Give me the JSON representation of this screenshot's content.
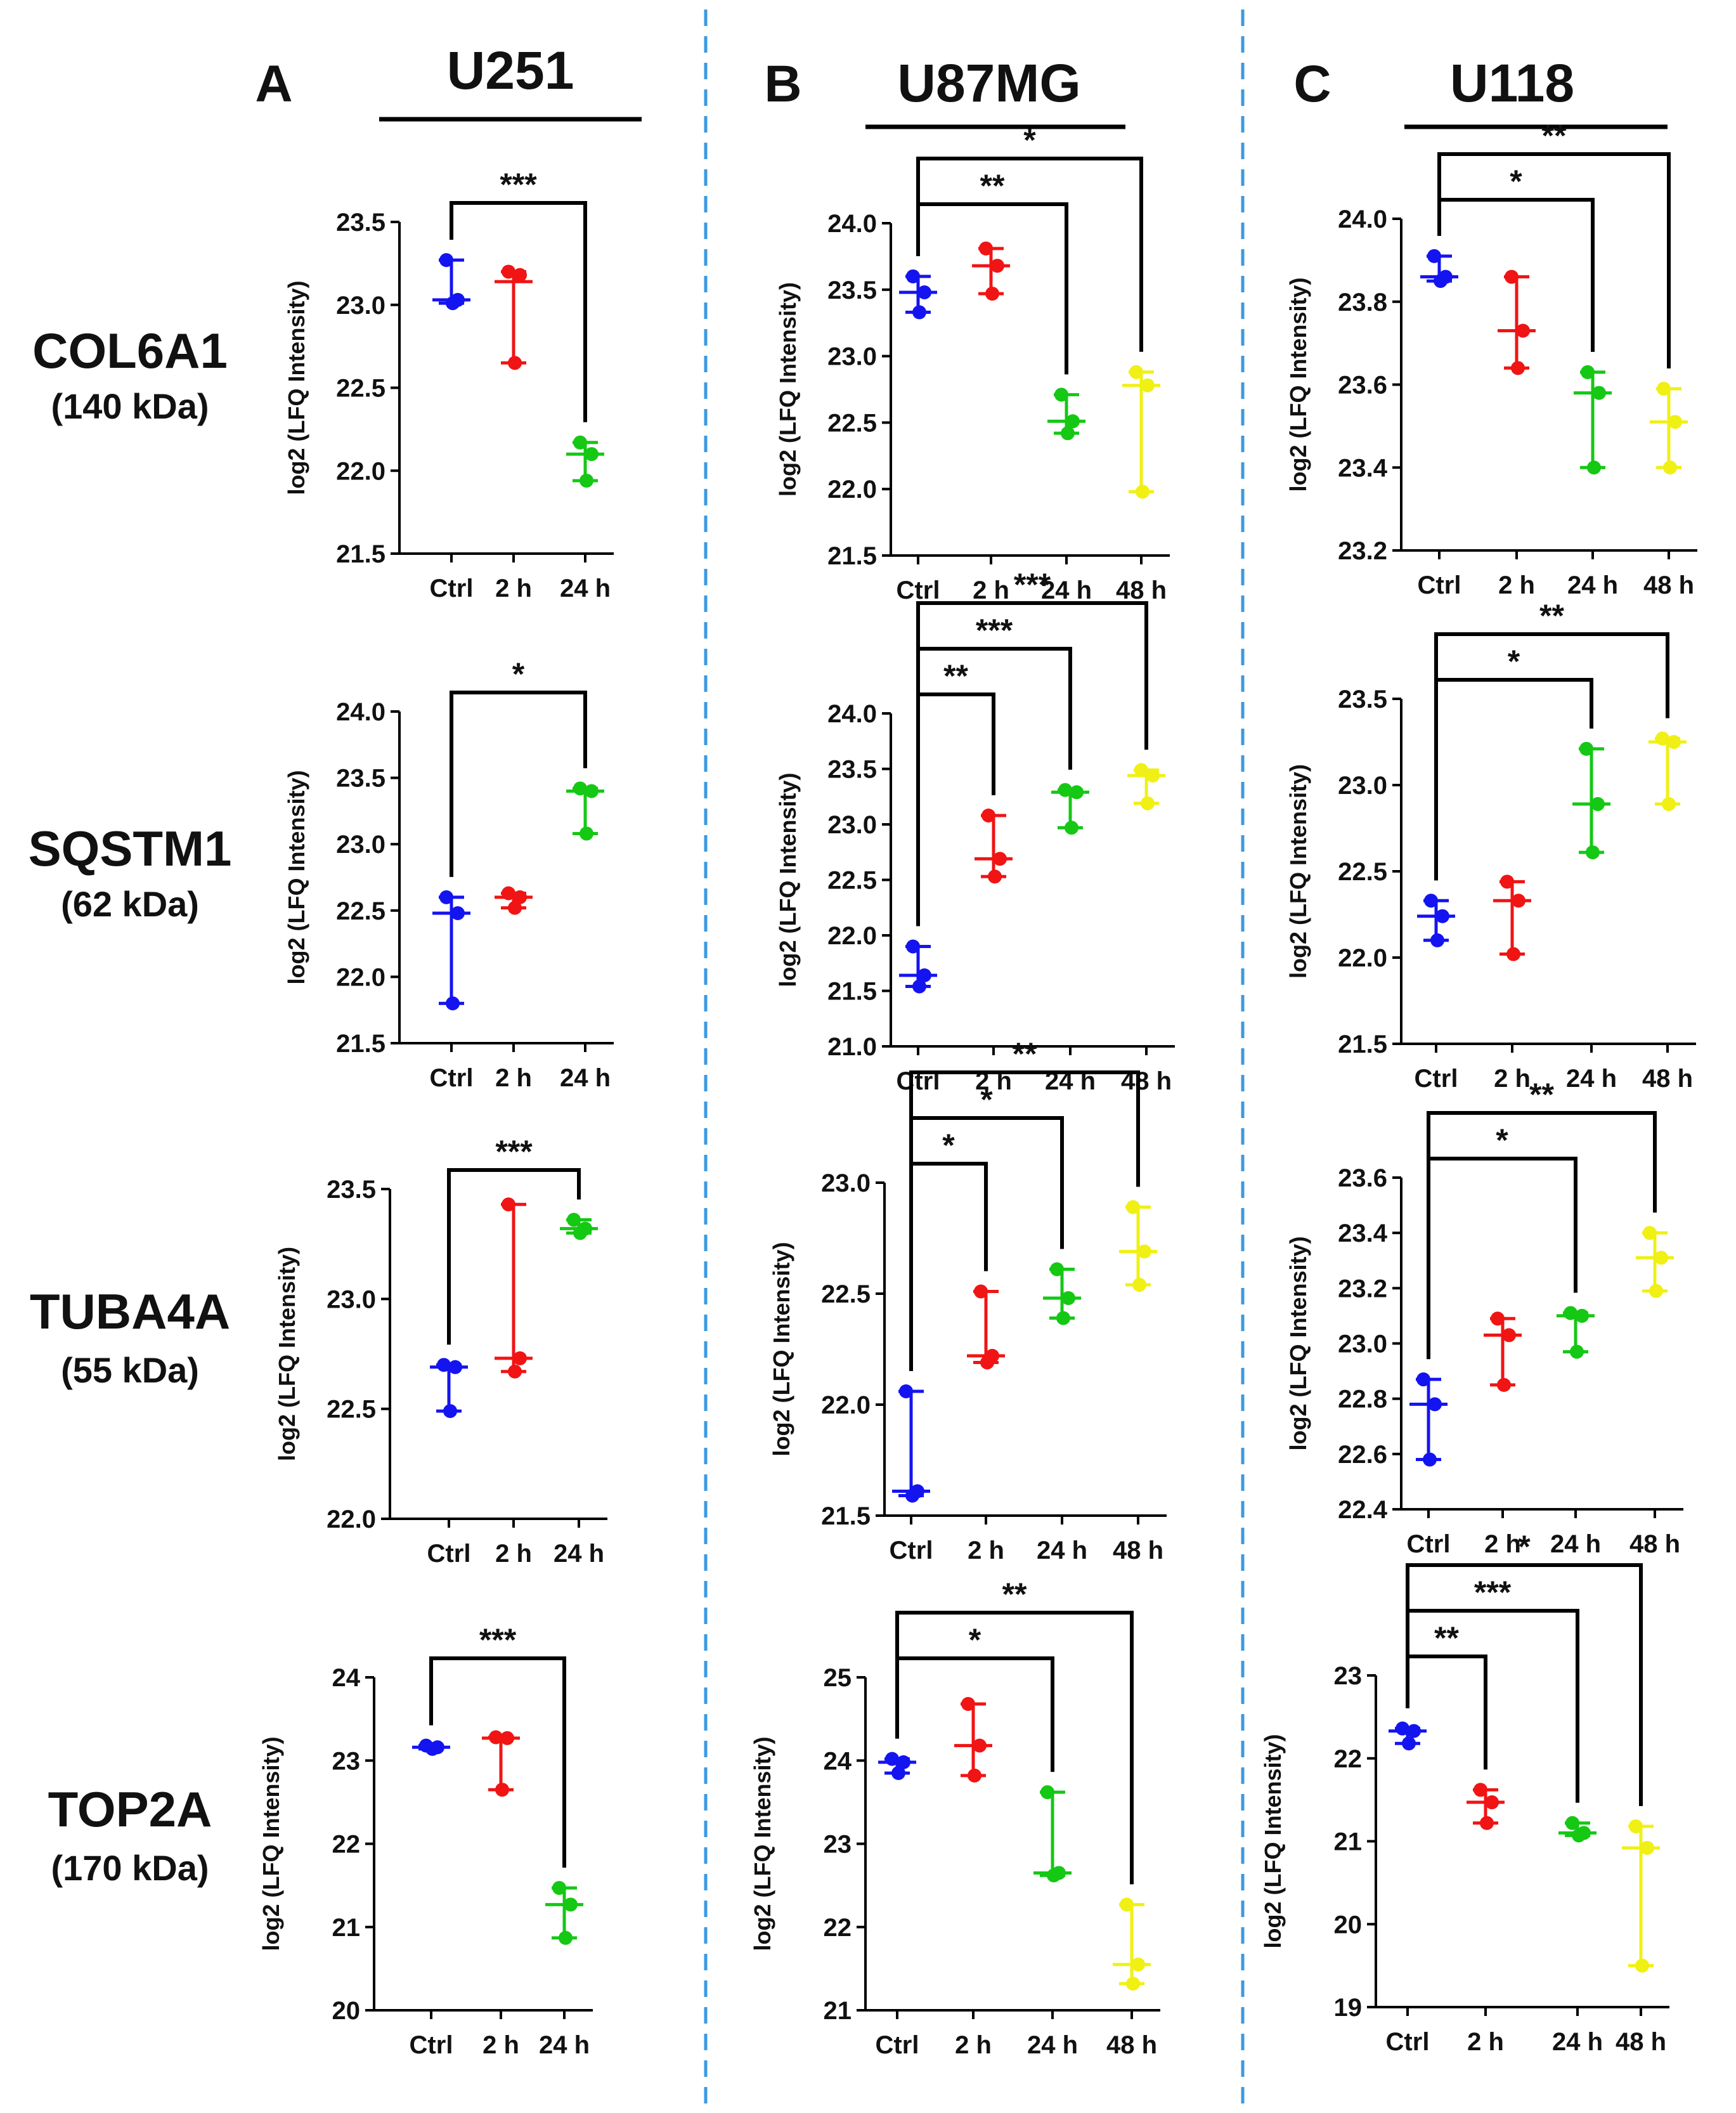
{
  "figure": {
    "columns": [
      {
        "panel": "A",
        "cell_line": "U251"
      },
      {
        "panel": "B",
        "cell_line": "U87MG"
      },
      {
        "panel": "C",
        "cell_line": "U118"
      }
    ],
    "rows": [
      {
        "protein": "COL6A1",
        "size": "(140 kDa)"
      },
      {
        "protein": "SQSTM1",
        "size": "(62 kDa)"
      },
      {
        "protein": "TUBA4A",
        "size": "(55 kDa)"
      },
      {
        "protein": "TOP2A",
        "size": "(170 kDa)"
      }
    ],
    "y_axis_label": "log2 (LFQ Intensity)",
    "colors": {
      "Ctrl": "#1414f0",
      "2 h": "#f01414",
      "24 h": "#14c814",
      "48 h": "#f0f014",
      "axis": "#000000",
      "divider": "#3b9ae1"
    }
  },
  "chart_data": [
    {
      "id": "A1",
      "type": "scatter",
      "panel": "A",
      "cell_line": "U251",
      "protein": "COL6A1",
      "ylabel": "log2 (LFQ Intensity)",
      "categories": [
        "Ctrl",
        "2 h",
        "24 h"
      ],
      "ylim": [
        21.5,
        23.5
      ],
      "yticks": [
        "21.5",
        "22.0",
        "22.5",
        "23.0",
        "23.5"
      ],
      "groups": [
        {
          "category": "Ctrl",
          "median": 23.03,
          "points": [
            23.27,
            23.03,
            23.01
          ]
        },
        {
          "category": "2 h",
          "median": 23.14,
          "points": [
            23.2,
            23.18,
            22.65
          ]
        },
        {
          "category": "24 h",
          "median": 22.1,
          "points": [
            22.17,
            22.1,
            21.94
          ]
        }
      ],
      "significance": [
        {
          "from": "Ctrl",
          "to": "24 h",
          "label": "***"
        }
      ]
    },
    {
      "id": "B1",
      "type": "scatter",
      "panel": "B",
      "cell_line": "U87MG",
      "protein": "COL6A1",
      "ylabel": "log2 (LFQ Intensity)",
      "categories": [
        "Ctrl",
        "2 h",
        "24 h",
        "48 h"
      ],
      "ylim": [
        21.5,
        24.0
      ],
      "yticks": [
        "21.5",
        "22.0",
        "22.5",
        "23.0",
        "23.5",
        "24.0"
      ],
      "groups": [
        {
          "category": "Ctrl",
          "median": 23.48,
          "points": [
            23.6,
            23.48,
            23.33
          ]
        },
        {
          "category": "2 h",
          "median": 23.68,
          "points": [
            23.81,
            23.68,
            23.47
          ]
        },
        {
          "category": "24 h",
          "median": 22.51,
          "points": [
            22.71,
            22.51,
            22.42
          ]
        },
        {
          "category": "48 h",
          "median": 22.78,
          "points": [
            22.88,
            22.78,
            21.98
          ]
        }
      ],
      "significance": [
        {
          "from": "Ctrl",
          "to": "24 h",
          "label": "**"
        },
        {
          "from": "Ctrl",
          "to": "48 h",
          "label": "*"
        }
      ]
    },
    {
      "id": "C1",
      "type": "scatter",
      "panel": "C",
      "cell_line": "U118",
      "protein": "COL6A1",
      "ylabel": "log2 (LFQ Intensity)",
      "categories": [
        "Ctrl",
        "2 h",
        "24 h",
        "48 h"
      ],
      "ylim": [
        23.2,
        24.0
      ],
      "yticks": [
        "23.2",
        "23.4",
        "23.6",
        "23.8",
        "24.0"
      ],
      "groups": [
        {
          "category": "Ctrl",
          "median": 23.86,
          "points": [
            23.91,
            23.86,
            23.85
          ]
        },
        {
          "category": "2 h",
          "median": 23.73,
          "points": [
            23.86,
            23.73,
            23.64
          ]
        },
        {
          "category": "24 h",
          "median": 23.58,
          "points": [
            23.63,
            23.58,
            23.4
          ]
        },
        {
          "category": "48 h",
          "median": 23.51,
          "points": [
            23.59,
            23.51,
            23.4
          ]
        }
      ],
      "significance": [
        {
          "from": "Ctrl",
          "to": "24 h",
          "label": "*"
        },
        {
          "from": "Ctrl",
          "to": "48 h",
          "label": "**"
        }
      ]
    },
    {
      "id": "A2",
      "type": "scatter",
      "panel": "A",
      "cell_line": "U251",
      "protein": "SQSTM1",
      "ylabel": "log2 (LFQ Intensity)",
      "categories": [
        "Ctrl",
        "2 h",
        "24 h"
      ],
      "ylim": [
        21.5,
        24.0
      ],
      "yticks": [
        "21.5",
        "22.0",
        "22.5",
        "23.0",
        "23.5",
        "24.0"
      ],
      "groups": [
        {
          "category": "Ctrl",
          "median": 22.48,
          "points": [
            22.6,
            22.48,
            21.8
          ]
        },
        {
          "category": "2 h",
          "median": 22.6,
          "points": [
            22.63,
            22.6,
            22.52
          ]
        },
        {
          "category": "24 h",
          "median": 23.4,
          "points": [
            23.42,
            23.4,
            23.08
          ]
        }
      ],
      "significance": [
        {
          "from": "Ctrl",
          "to": "24 h",
          "label": "*"
        }
      ]
    },
    {
      "id": "B2",
      "type": "scatter",
      "panel": "B",
      "cell_line": "U87MG",
      "protein": "SQSTM1",
      "ylabel": "log2 (LFQ Intensity)",
      "categories": [
        "Ctrl",
        "2 h",
        "24 h",
        "48 h"
      ],
      "ylim": [
        21.0,
        24.0
      ],
      "yticks": [
        "21.0",
        "21.5",
        "22.0",
        "22.5",
        "23.0",
        "23.5",
        "24.0"
      ],
      "groups": [
        {
          "category": "Ctrl",
          "median": 21.64,
          "points": [
            21.9,
            21.64,
            21.54
          ]
        },
        {
          "category": "2 h",
          "median": 22.69,
          "points": [
            23.08,
            22.69,
            22.53
          ]
        },
        {
          "category": "24 h",
          "median": 23.29,
          "points": [
            23.31,
            23.29,
            22.97
          ]
        },
        {
          "category": "48 h",
          "median": 23.44,
          "points": [
            23.49,
            23.44,
            23.19
          ]
        }
      ],
      "significance": [
        {
          "from": "Ctrl",
          "to": "2 h",
          "label": "**"
        },
        {
          "from": "Ctrl",
          "to": "24 h",
          "label": "***"
        },
        {
          "from": "Ctrl",
          "to": "48 h",
          "label": "***"
        }
      ]
    },
    {
      "id": "C2",
      "type": "scatter",
      "panel": "C",
      "cell_line": "U118",
      "protein": "SQSTM1",
      "ylabel": "log2 (LFQ Intensity)",
      "categories": [
        "Ctrl",
        "2 h",
        "24 h",
        "48 h"
      ],
      "ylim": [
        21.5,
        23.5
      ],
      "yticks": [
        "21.5",
        "22.0",
        "22.5",
        "23.0",
        "23.5"
      ],
      "groups": [
        {
          "category": "Ctrl",
          "median": 22.24,
          "points": [
            22.33,
            22.24,
            22.1
          ]
        },
        {
          "category": "2 h",
          "median": 22.33,
          "points": [
            22.44,
            22.33,
            22.02
          ]
        },
        {
          "category": "24 h",
          "median": 22.89,
          "points": [
            23.21,
            22.89,
            22.61
          ]
        },
        {
          "category": "48 h",
          "median": 23.25,
          "points": [
            23.27,
            23.25,
            22.89
          ]
        }
      ],
      "significance": [
        {
          "from": "Ctrl",
          "to": "24 h",
          "label": "*"
        },
        {
          "from": "Ctrl",
          "to": "48 h",
          "label": "**"
        }
      ]
    },
    {
      "id": "A3",
      "type": "scatter",
      "panel": "A",
      "cell_line": "U251",
      "protein": "TUBA4A",
      "ylabel": "log2 (LFQ Intensity)",
      "categories": [
        "Ctrl",
        "2 h",
        "24 h"
      ],
      "ylim": [
        22.0,
        23.5
      ],
      "yticks": [
        "22.0",
        "22.5",
        "23.0",
        "23.5"
      ],
      "groups": [
        {
          "category": "Ctrl",
          "median": 22.69,
          "points": [
            22.7,
            22.69,
            22.49
          ]
        },
        {
          "category": "2 h",
          "median": 22.73,
          "points": [
            23.43,
            22.73,
            22.67
          ]
        },
        {
          "category": "24 h",
          "median": 23.32,
          "points": [
            23.36,
            23.32,
            23.3
          ]
        }
      ],
      "significance": [
        {
          "from": "Ctrl",
          "to": "24 h",
          "label": "***"
        }
      ]
    },
    {
      "id": "B3",
      "type": "scatter",
      "panel": "B",
      "cell_line": "U87MG",
      "protein": "TUBA4A",
      "ylabel": "log2 (LFQ Intensity)",
      "categories": [
        "Ctrl",
        "2 h",
        "24 h",
        "48 h"
      ],
      "ylim": [
        21.5,
        23.0
      ],
      "yticks": [
        "21.5",
        "22.0",
        "22.5",
        "23.0"
      ],
      "groups": [
        {
          "category": "Ctrl",
          "median": 21.61,
          "points": [
            22.06,
            21.61,
            21.59
          ]
        },
        {
          "category": "2 h",
          "median": 22.22,
          "points": [
            22.51,
            22.22,
            22.19
          ]
        },
        {
          "category": "24 h",
          "median": 22.48,
          "points": [
            22.61,
            22.48,
            22.39
          ]
        },
        {
          "category": "48 h",
          "median": 22.69,
          "points": [
            22.89,
            22.69,
            22.54
          ]
        }
      ],
      "significance": [
        {
          "from": "Ctrl",
          "to": "2 h",
          "label": "*"
        },
        {
          "from": "Ctrl",
          "to": "24 h",
          "label": "*"
        },
        {
          "from": "Ctrl",
          "to": "48 h",
          "label": "**"
        }
      ]
    },
    {
      "id": "C3",
      "type": "scatter",
      "panel": "C",
      "cell_line": "U118",
      "protein": "TUBA4A",
      "ylabel": "log2 (LFQ Intensity)",
      "categories": [
        "Ctrl",
        "2 h",
        "24 h",
        "48 h"
      ],
      "ylim": [
        22.4,
        23.6
      ],
      "yticks": [
        "22.4",
        "22.6",
        "22.8",
        "23.0",
        "23.2",
        "23.4",
        "23.6"
      ],
      "groups": [
        {
          "category": "Ctrl",
          "median": 22.78,
          "points": [
            22.87,
            22.78,
            22.58
          ]
        },
        {
          "category": "2 h",
          "median": 23.03,
          "points": [
            23.09,
            23.03,
            22.85
          ]
        },
        {
          "category": "24 h",
          "median": 23.1,
          "points": [
            23.11,
            23.1,
            22.97
          ]
        },
        {
          "category": "48 h",
          "median": 23.31,
          "points": [
            23.4,
            23.31,
            23.19
          ]
        }
      ],
      "significance": [
        {
          "from": "Ctrl",
          "to": "24 h",
          "label": "*"
        },
        {
          "from": "Ctrl",
          "to": "48 h",
          "label": "**"
        }
      ]
    },
    {
      "id": "A4",
      "type": "scatter",
      "panel": "A",
      "cell_line": "U251",
      "protein": "TOP2A",
      "ylabel": "log2 (LFQ Intensity)",
      "categories": [
        "Ctrl",
        "2 h",
        "24 h"
      ],
      "ylim": [
        20,
        24
      ],
      "yticks": [
        "20",
        "21",
        "22",
        "23",
        "24"
      ],
      "groups": [
        {
          "category": "Ctrl",
          "median": 23.16,
          "points": [
            23.18,
            23.16,
            23.14
          ]
        },
        {
          "category": "2 h",
          "median": 23.27,
          "points": [
            23.28,
            23.27,
            22.65
          ]
        },
        {
          "category": "24 h",
          "median": 21.27,
          "points": [
            21.47,
            21.27,
            20.87
          ]
        }
      ],
      "significance": [
        {
          "from": "Ctrl",
          "to": "24 h",
          "label": "***"
        }
      ]
    },
    {
      "id": "B4",
      "type": "scatter",
      "panel": "B",
      "cell_line": "U87MG",
      "protein": "TOP2A",
      "ylabel": "log2 (LFQ Intensity)",
      "categories": [
        "Ctrl",
        "2 h",
        "24 h",
        "48 h"
      ],
      "ylim": [
        21,
        25
      ],
      "yticks": [
        "21",
        "22",
        "23",
        "24",
        "25"
      ],
      "groups": [
        {
          "category": "Ctrl",
          "median": 23.98,
          "points": [
            24.02,
            23.98,
            23.85
          ]
        },
        {
          "category": "2 h",
          "median": 24.18,
          "points": [
            24.68,
            24.18,
            23.82
          ]
        },
        {
          "category": "24 h",
          "median": 22.65,
          "points": [
            23.62,
            22.65,
            22.62
          ]
        },
        {
          "category": "48 h",
          "median": 21.55,
          "points": [
            22.27,
            21.55,
            21.32
          ]
        }
      ],
      "significance": [
        {
          "from": "Ctrl",
          "to": "24 h",
          "label": "*"
        },
        {
          "from": "Ctrl",
          "to": "48 h",
          "label": "**"
        }
      ]
    },
    {
      "id": "C4",
      "type": "scatter",
      "panel": "C",
      "cell_line": "U118",
      "protein": "TOP2A",
      "ylabel": "log2 (LFQ Intensity)",
      "categories": [
        "Ctrl",
        "2 h",
        "24 h",
        "48 h"
      ],
      "ylim": [
        19,
        23
      ],
      "yticks": [
        "19",
        "20",
        "21",
        "22",
        "23"
      ],
      "groups": [
        {
          "category": "Ctrl",
          "median": 22.33,
          "points": [
            22.36,
            22.33,
            22.18
          ]
        },
        {
          "category": "2 h",
          "median": 21.47,
          "points": [
            21.62,
            21.47,
            21.22
          ]
        },
        {
          "category": "24 h",
          "median": 21.1,
          "points": [
            21.22,
            21.1,
            21.07
          ]
        },
        {
          "category": "48 h",
          "median": 20.92,
          "points": [
            21.18,
            20.92,
            19.5
          ]
        }
      ],
      "significance": [
        {
          "from": "Ctrl",
          "to": "2 h",
          "label": "**"
        },
        {
          "from": "Ctrl",
          "to": "24 h",
          "label": "***"
        },
        {
          "from": "Ctrl",
          "to": "48 h",
          "label": "*"
        }
      ]
    }
  ]
}
